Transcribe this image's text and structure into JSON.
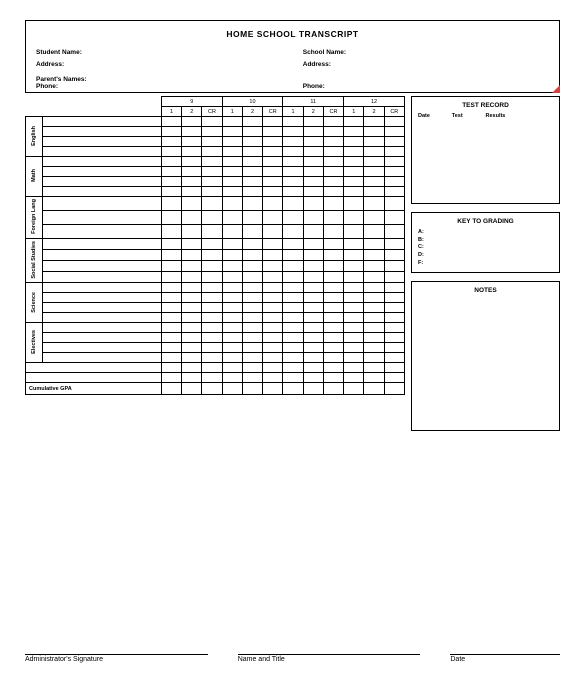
{
  "title": "HOME  SCHOOL TRANSCRIPT",
  "header": {
    "student_name_lbl": "Student Name:",
    "school_name_lbl": "School Name:",
    "address_lbl_l": "Address:",
    "address_lbl_r": "Address:",
    "parents_lbl": "Parent's Names:",
    "phone_lbl_l": "Phone:",
    "phone_lbl_r": "Phone:"
  },
  "grades": {
    "years": [
      "9",
      "10",
      "11",
      "12"
    ],
    "sub_cols": [
      "1",
      "2",
      "CR"
    ],
    "subjects": [
      "English",
      "Math",
      "Foreign Lang",
      "Social Studies",
      "Science",
      "Electives"
    ],
    "subject_rows": [
      4,
      4,
      3,
      4,
      4,
      4
    ],
    "cumulative_lbl": "Cumulative GPA"
  },
  "side": {
    "test_record_title": "TEST RECORD",
    "test_cols": [
      "Date",
      "Test",
      "Results"
    ],
    "grading_title": "KEY TO GRADING",
    "grading_keys": [
      "A:",
      "B:",
      "C:",
      "D:",
      "F:"
    ],
    "notes_title": "NOTES"
  },
  "footer": {
    "admin_sig": "Administrator's Signature",
    "name_title": "Name and Title",
    "date": "Date"
  },
  "style": {
    "border_color": "#000000",
    "background": "#ffffff",
    "corner_mark": "#c44444"
  }
}
